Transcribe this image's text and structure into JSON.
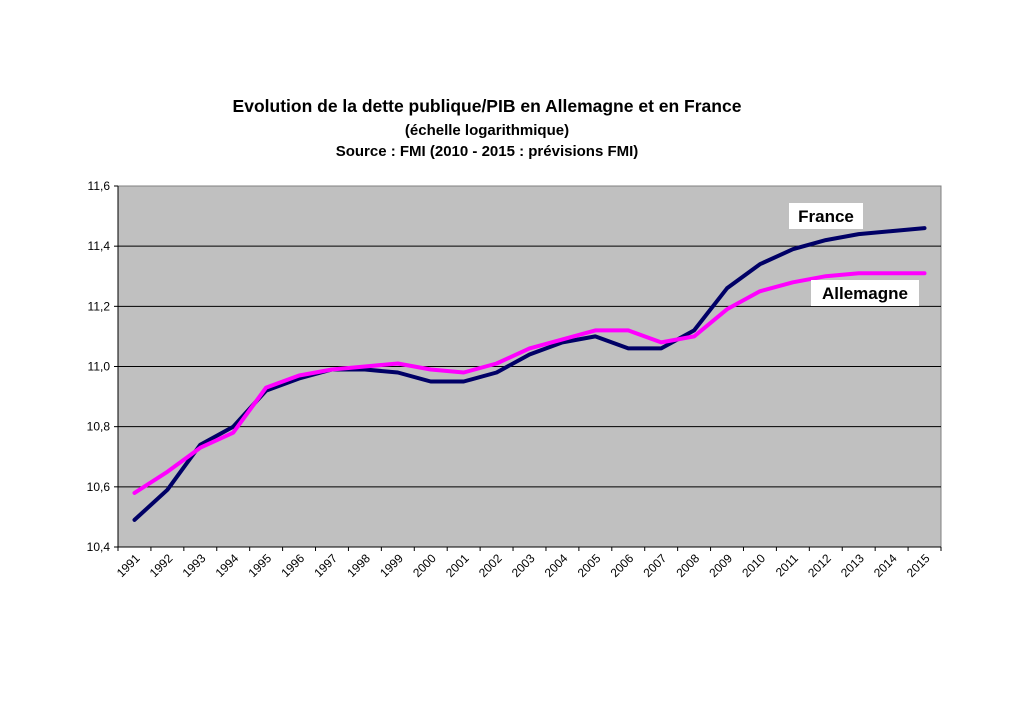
{
  "header": {
    "title": "Evolution de la dette publique/PIB en Allemagne et en France",
    "subtitle": "(échelle logarithmique)",
    "source": "Source : FMI (2010 - 2015 : prévisions FMI)"
  },
  "chart_data": {
    "type": "line",
    "title": "Evolution de la dette publique/PIB en Allemagne et en France",
    "xlabel": "",
    "ylabel": "",
    "ylim": [
      10.4,
      11.6
    ],
    "yticks": [
      "10,4",
      "10,6",
      "10,8",
      "11,0",
      "11,2",
      "11,4",
      "11,6"
    ],
    "grid": true,
    "plot_background": "#c0c0c0",
    "categories": [
      "1991",
      "1992",
      "1993",
      "1994",
      "1995",
      "1996",
      "1997",
      "1998",
      "1999",
      "2000",
      "2001",
      "2002",
      "2003",
      "2004",
      "2005",
      "2006",
      "2007",
      "2008",
      "2009",
      "2010",
      "2011",
      "2012",
      "2013",
      "2014",
      "2015"
    ],
    "series": [
      {
        "name": "France",
        "color": "#000066",
        "values": [
          10.49,
          10.59,
          10.74,
          10.8,
          10.92,
          10.96,
          10.99,
          10.99,
          10.98,
          10.95,
          10.95,
          10.98,
          11.04,
          11.08,
          11.1,
          11.06,
          11.06,
          11.12,
          11.26,
          11.34,
          11.39,
          11.42,
          11.44,
          11.45,
          11.46
        ]
      },
      {
        "name": "Allemagne",
        "color": "#ff00ff",
        "values": [
          10.58,
          10.65,
          10.73,
          10.78,
          10.93,
          10.97,
          10.99,
          11.0,
          11.01,
          10.99,
          10.98,
          11.01,
          11.06,
          11.09,
          11.12,
          11.12,
          11.08,
          11.1,
          11.19,
          11.25,
          11.28,
          11.3,
          11.31,
          11.31,
          11.31
        ]
      }
    ]
  }
}
